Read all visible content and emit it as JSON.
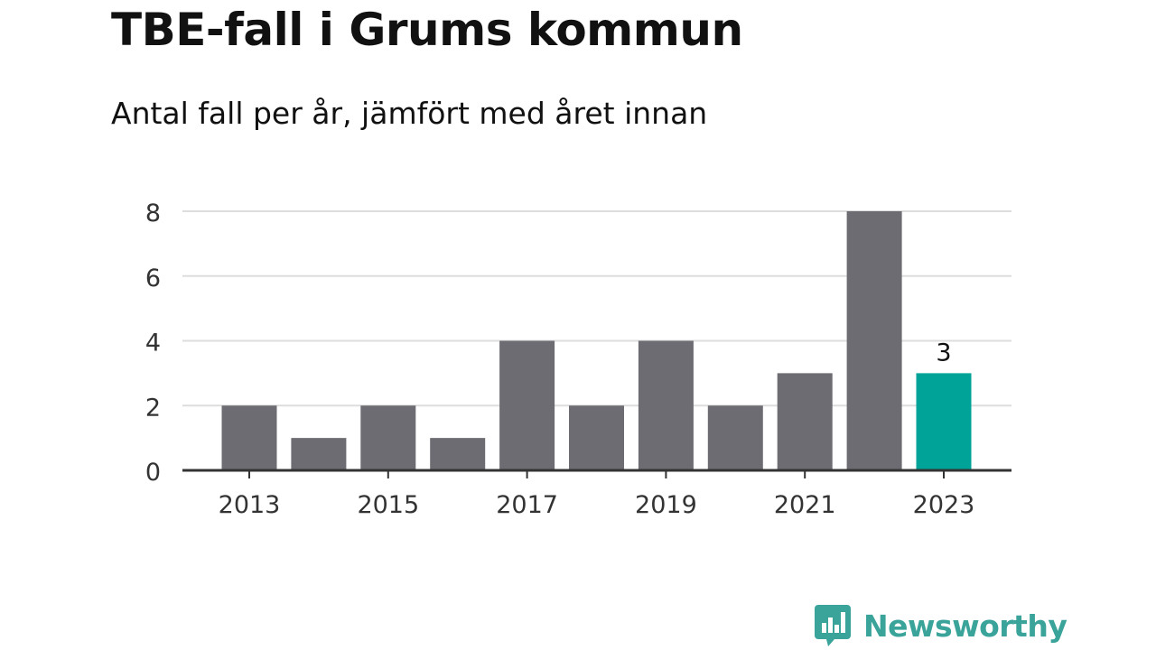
{
  "title": "TBE-fall i Grums kommun",
  "subtitle": "Antal fall per år, jämfört med året innan",
  "brand": {
    "name": "Newsworthy",
    "icon": "newsworthy-logo-icon",
    "color": "#3aa39a"
  },
  "colors": {
    "bar": "#6d6c72",
    "highlight": "#00a397",
    "grid": "#dddddd",
    "axis": "#333333",
    "text": "#333333"
  },
  "chart_data": {
    "type": "bar",
    "categories": [
      "2013",
      "2014",
      "2015",
      "2016",
      "2017",
      "2018",
      "2019",
      "2020",
      "2021",
      "2022",
      "2023"
    ],
    "values": [
      2,
      1,
      2,
      1,
      4,
      2,
      4,
      2,
      3,
      8,
      3
    ],
    "x_tick_labels": [
      "2013",
      "2015",
      "2017",
      "2019",
      "2021",
      "2023"
    ],
    "y_ticks": [
      0,
      2,
      4,
      6,
      8
    ],
    "ylim": [
      0,
      8
    ],
    "highlight_index": 10,
    "data_labels": [
      {
        "index": 10,
        "text": "3"
      }
    ],
    "xlabel": "",
    "ylabel": "",
    "grid": true,
    "legend": "none"
  }
}
